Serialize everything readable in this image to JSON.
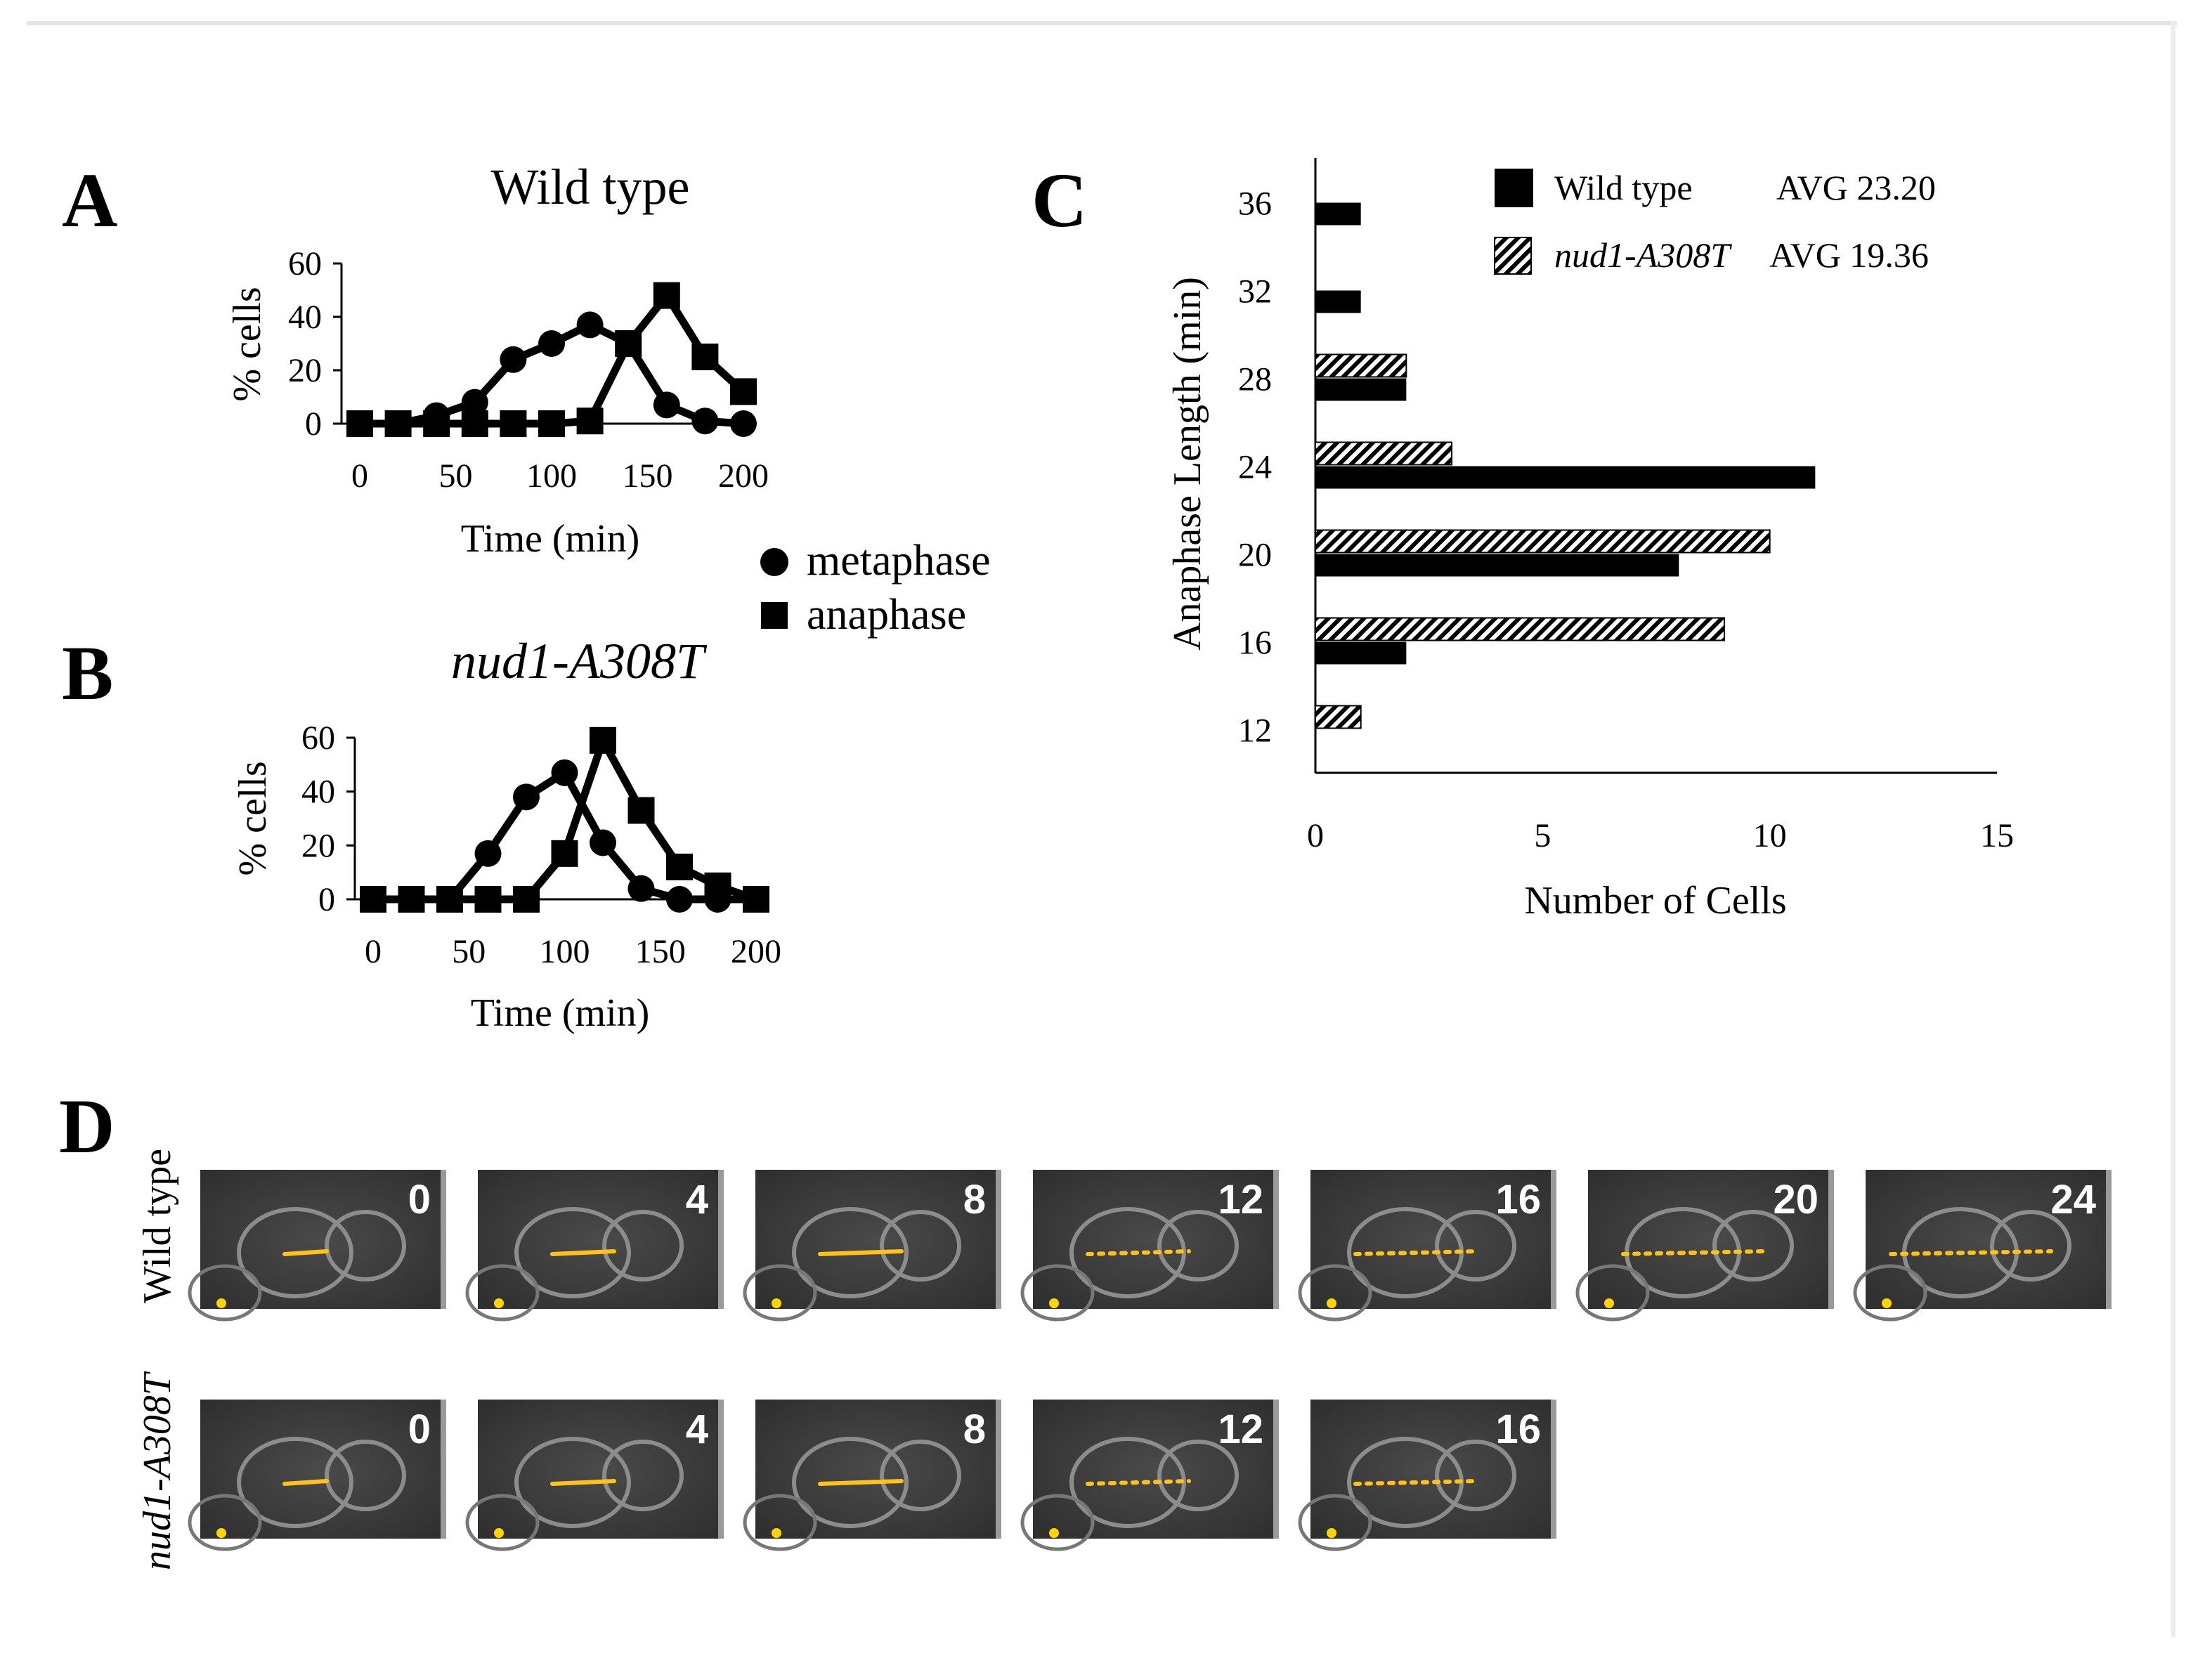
{
  "panels": {
    "a": "A",
    "b": "B",
    "c": "C",
    "d": "D"
  },
  "legend_ab": {
    "metaphase": "metaphase",
    "anaphase": "anaphase"
  },
  "panel_d": {
    "row_labels": [
      "Wild type",
      "nud1-A308T"
    ],
    "wild_type_times": [
      "0",
      "4",
      "8",
      "12",
      "16",
      "20",
      "24"
    ],
    "mutant_times": [
      "0",
      "4",
      "8",
      "12",
      "16"
    ]
  },
  "chart_data": [
    {
      "id": "A",
      "type": "line",
      "title": "Wild type",
      "xlabel": "Time (min)",
      "ylabel": "% cells",
      "xlim": [
        0,
        200
      ],
      "ylim": [
        0,
        60
      ],
      "xticks": [
        "0",
        "50",
        "100",
        "150",
        "200"
      ],
      "yticks": [
        "0",
        "20",
        "40",
        "60"
      ],
      "x": [
        0,
        20,
        40,
        60,
        80,
        100,
        120,
        140,
        160,
        180,
        200
      ],
      "series": [
        {
          "name": "metaphase",
          "marker": "circle",
          "values": [
            0,
            0,
            3,
            8,
            24,
            30,
            37,
            30,
            7,
            1,
            0
          ]
        },
        {
          "name": "anaphase",
          "marker": "square",
          "values": [
            0,
            0,
            0,
            0,
            0,
            0,
            1,
            30,
            48,
            25,
            12
          ]
        }
      ]
    },
    {
      "id": "B",
      "type": "line",
      "title": "nud1-A308T",
      "xlabel": "Time (min)",
      "ylabel": "% cells",
      "xlim": [
        0,
        200
      ],
      "ylim": [
        0,
        60
      ],
      "xticks": [
        "0",
        "50",
        "100",
        "150",
        "200"
      ],
      "yticks": [
        "0",
        "20",
        "40",
        "60"
      ],
      "x": [
        0,
        20,
        40,
        60,
        80,
        100,
        120,
        140,
        160,
        180,
        200
      ],
      "series": [
        {
          "name": "metaphase",
          "marker": "circle",
          "values": [
            0,
            0,
            0,
            17,
            38,
            47,
            21,
            4,
            0,
            0,
            0
          ]
        },
        {
          "name": "anaphase",
          "marker": "square",
          "values": [
            0,
            0,
            0,
            0,
            0,
            17,
            59,
            33,
            12,
            5,
            0
          ]
        }
      ]
    },
    {
      "id": "C",
      "type": "bar",
      "orientation": "horizontal",
      "xlabel": "Number of Cells",
      "ylabel": "Anaphase Length (min)",
      "xlim": [
        0,
        15
      ],
      "xticks": [
        "0",
        "5",
        "10",
        "15"
      ],
      "categories": [
        "12",
        "16",
        "20",
        "24",
        "28",
        "32",
        "36"
      ],
      "series": [
        {
          "name": "Wild type",
          "avg": "AVG 23.20",
          "fill": "solid",
          "values": [
            0,
            2,
            8,
            11,
            2,
            1,
            1
          ]
        },
        {
          "name": "nud1-A308T",
          "avg": "AVG 19.36",
          "fill": "hatched",
          "values": [
            1,
            9,
            10,
            3,
            2,
            0,
            0
          ]
        }
      ]
    }
  ]
}
